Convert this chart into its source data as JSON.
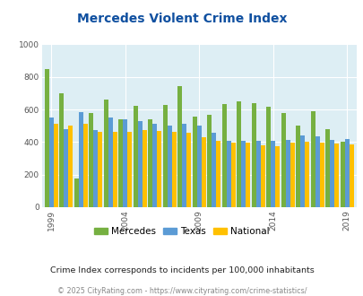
{
  "title": "Mercedes Violent Crime Index",
  "years": [
    1999,
    2000,
    2001,
    2002,
    2003,
    2004,
    2005,
    2006,
    2007,
    2008,
    2009,
    2010,
    2011,
    2012,
    2013,
    2014,
    2015,
    2016,
    2017,
    2018,
    2019
  ],
  "mercedes": [
    850,
    700,
    175,
    580,
    660,
    540,
    620,
    540,
    630,
    745,
    555,
    570,
    635,
    650,
    640,
    615,
    580,
    500,
    590,
    480,
    400
  ],
  "texas": [
    550,
    480,
    585,
    475,
    550,
    540,
    530,
    510,
    500,
    510,
    500,
    455,
    405,
    410,
    410,
    405,
    415,
    440,
    435,
    415,
    420
  ],
  "national": [
    510,
    500,
    510,
    465,
    465,
    465,
    475,
    470,
    465,
    455,
    430,
    405,
    395,
    395,
    380,
    375,
    395,
    400,
    395,
    390,
    385
  ],
  "mercedes_color": "#76b041",
  "texas_color": "#5b9bd5",
  "national_color": "#ffc000",
  "bg_color": "#ddeef4",
  "ylim": [
    0,
    1000
  ],
  "yticks": [
    0,
    200,
    400,
    600,
    800,
    1000
  ],
  "xtick_years": [
    1999,
    2004,
    2009,
    2014,
    2019
  ],
  "title_color": "#1050a0",
  "subtitle": "Crime Index corresponds to incidents per 100,000 inhabitants",
  "footer": "© 2025 CityRating.com - https://www.cityrating.com/crime-statistics/",
  "legend_labels": [
    "Mercedes",
    "Texas",
    "National"
  ],
  "fig_width": 4.06,
  "fig_height": 3.3,
  "dpi": 100
}
